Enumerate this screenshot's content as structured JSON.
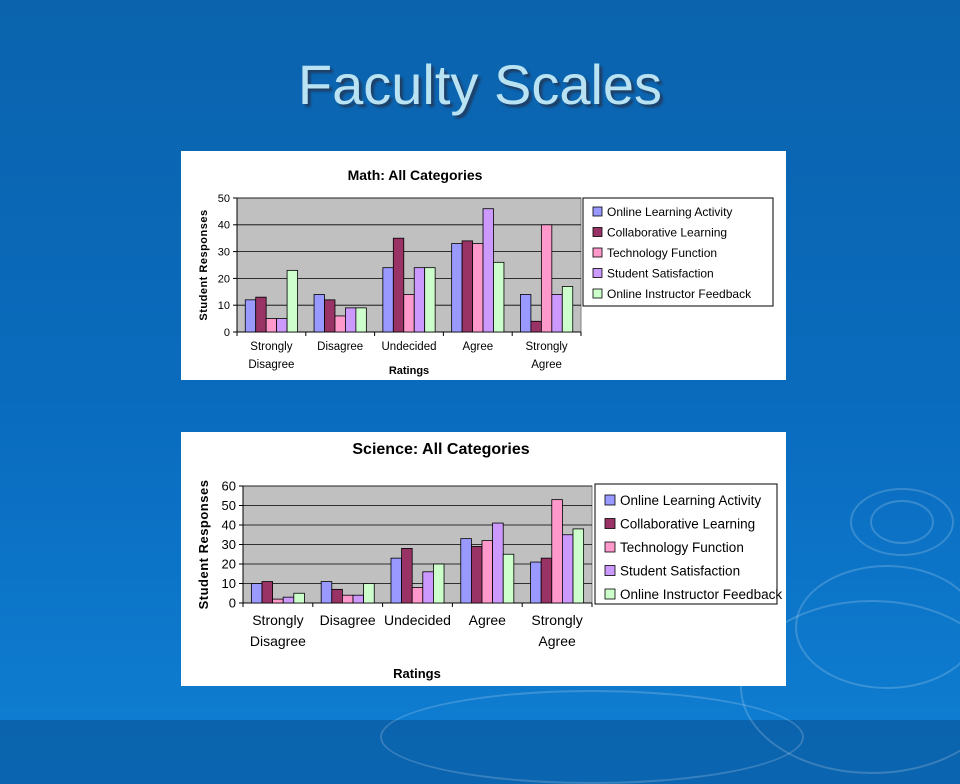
{
  "slide": {
    "title": "Faculty Scales"
  },
  "chart_data": [
    {
      "type": "bar",
      "title": "Math: All Categories",
      "xlabel": "Ratings",
      "ylabel": "Student Responses",
      "ylim": [
        0,
        50
      ],
      "yticks": [
        0,
        10,
        20,
        30,
        40,
        50
      ],
      "categories": [
        [
          "Strongly",
          "Disagree"
        ],
        [
          "Disagree"
        ],
        [
          "Undecided"
        ],
        [
          "Agree"
        ],
        [
          "Strongly",
          "Agree"
        ]
      ],
      "grid": true,
      "legend_position": "right",
      "series": [
        {
          "name": "Online Learning Activity",
          "color": "#9999ff",
          "values": [
            12,
            14,
            24,
            33,
            14
          ]
        },
        {
          "name": "Collaborative Learning",
          "color": "#993366",
          "values": [
            13,
            12,
            35,
            34,
            4
          ]
        },
        {
          "name": "Technology Function",
          "color": "#ff99cc",
          "values": [
            5,
            6,
            14,
            33,
            40
          ]
        },
        {
          "name": "Student Satisfaction",
          "color": "#cc99ff",
          "values": [
            5,
            9,
            24,
            46,
            14
          ]
        },
        {
          "name": "Online Instructor Feedback",
          "color": "#ccffcc",
          "values": [
            23,
            9,
            24,
            26,
            17
          ]
        }
      ]
    },
    {
      "type": "bar",
      "title": "Science: All Categories",
      "xlabel": "Ratings",
      "ylabel": "Student Responses",
      "ylim": [
        0,
        60
      ],
      "yticks": [
        0,
        10,
        20,
        30,
        40,
        50,
        60
      ],
      "categories": [
        [
          "Strongly",
          "Disagree"
        ],
        [
          "Disagree"
        ],
        [
          "Undecided"
        ],
        [
          "Agree"
        ],
        [
          "Strongly",
          "Agree"
        ]
      ],
      "grid": true,
      "legend_position": "right",
      "series": [
        {
          "name": "Online Learning Activity",
          "color": "#9999ff",
          "values": [
            10,
            11,
            23,
            33,
            21
          ]
        },
        {
          "name": "Collaborative Learning",
          "color": "#993366",
          "values": [
            11,
            7,
            28,
            29,
            23
          ]
        },
        {
          "name": "Technology Function",
          "color": "#ff99cc",
          "values": [
            2,
            4,
            8,
            32,
            53
          ]
        },
        {
          "name": "Student  Satisfaction",
          "color": "#cc99ff",
          "values": [
            3,
            4,
            16,
            41,
            35
          ]
        },
        {
          "name": "Online Instructor Feedback",
          "color": "#ccffcc",
          "values": [
            5,
            10,
            20,
            25,
            38
          ]
        }
      ]
    }
  ]
}
